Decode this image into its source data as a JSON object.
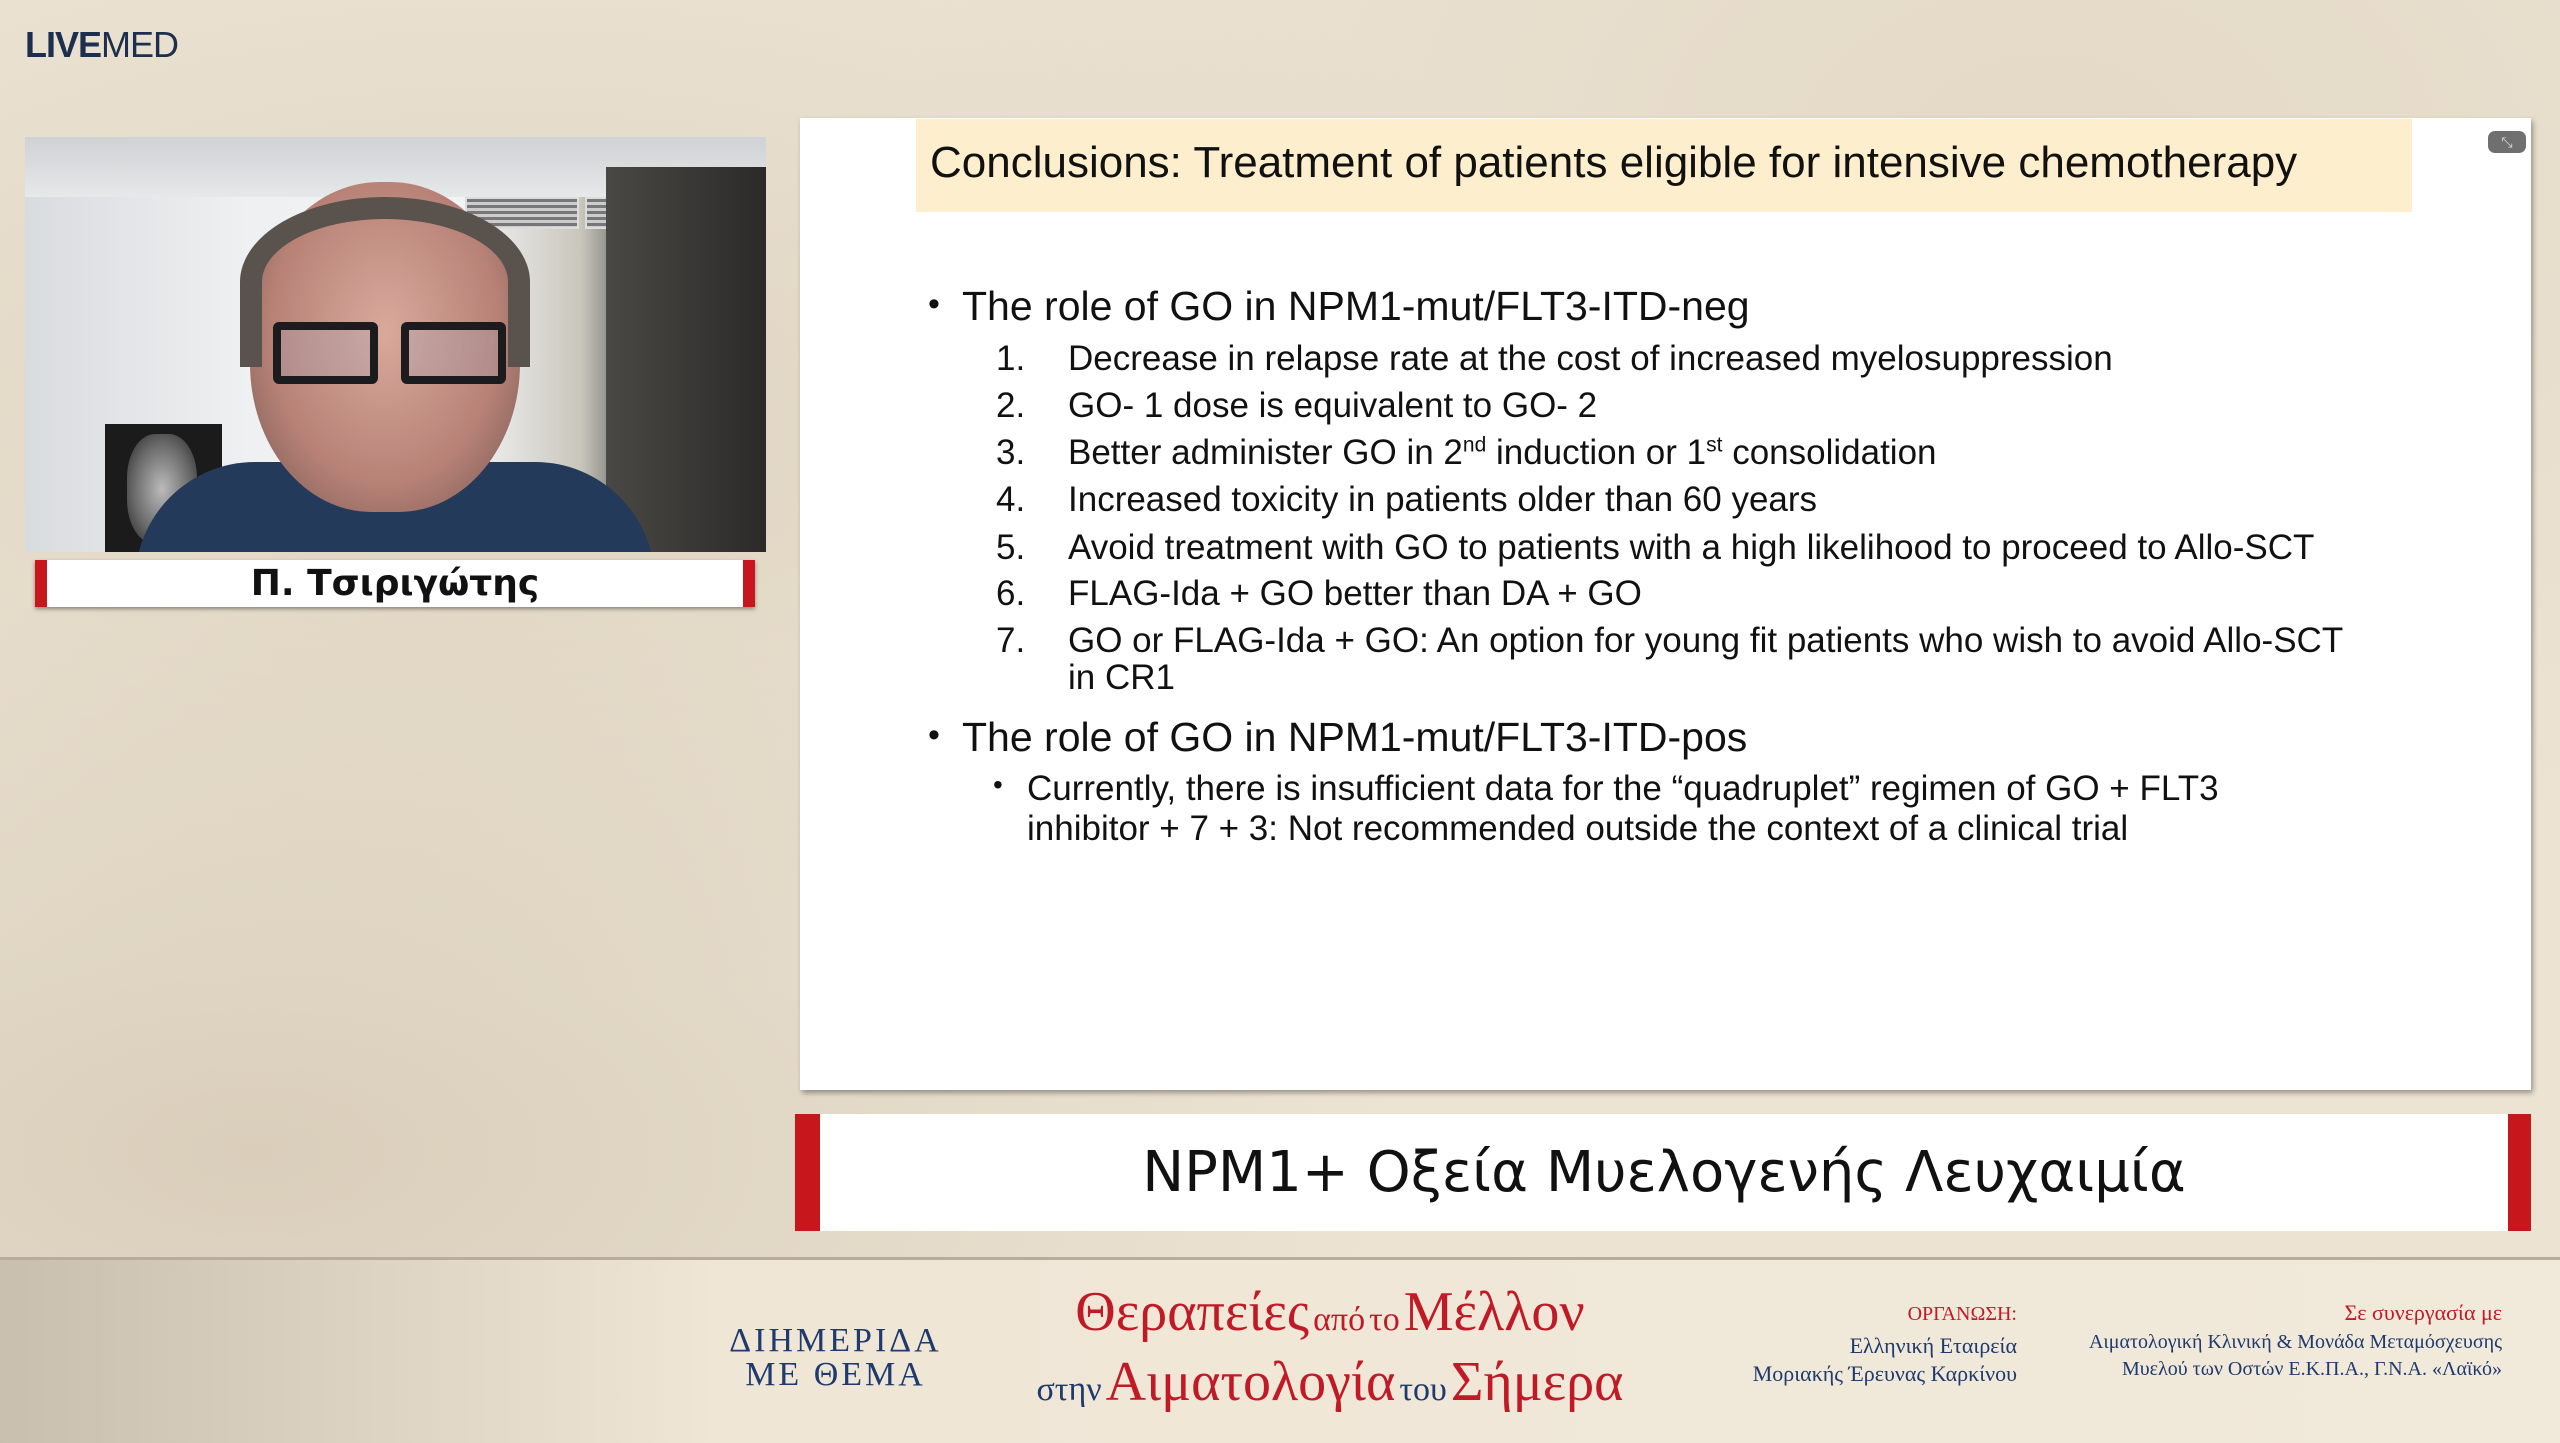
{
  "logo": {
    "bold": "LIVE",
    "light": "MED"
  },
  "speaker": {
    "name": "Π. Τσιριγώτης"
  },
  "slide": {
    "title": "Conclusions: Treatment of patients eligible for intensive chemotherapy",
    "collapse_icon": "collapse-arrows-icon",
    "sections": [
      {
        "heading": "The role of GO in NPM1-mut/FLT3-ITD-neg",
        "items": [
          {
            "num": "1.",
            "text": "Decrease in relapse rate at the cost of increased myelosuppression"
          },
          {
            "num": "2.",
            "text": "GO- 1 dose is equivalent to GO- 2"
          },
          {
            "num": "3.",
            "pre": "Better administer GO in 2",
            "sup1": "nd",
            "mid": " induction or 1",
            "sup2": "st",
            "post": " consolidation"
          },
          {
            "num": "4.",
            "text": "Increased toxicity in patients older than 60 years"
          },
          {
            "num": "5.",
            "text": "Avoid treatment with GO to patients with a high likelihood to proceed to Allo-SCT"
          },
          {
            "num": "6.",
            "text": "FLAG-Ida + GO better than DA + GO"
          },
          {
            "num": "7.",
            "text": "GO or FLAG-Ida + GO: An option for young fit patients who wish to avoid Allo-SCT",
            "text2": "in CR1"
          }
        ]
      },
      {
        "heading": "The role of GO in NPM1-mut/FLT3-ITD-pos",
        "items": [
          {
            "text": "Currently, there is insufficient data for the “quadruplet” regimen of GO + FLT3",
            "text2": "inhibitor + 7 + 3: Not recommended outside the context of a clinical trial"
          }
        ]
      }
    ]
  },
  "banner": {
    "title": "NPM1+ Οξεία Μυελογενής Λευχαιμία"
  },
  "footer": {
    "event_line1": "ΔΙΗΜΕΡΙΔΑ",
    "event_line2": "ΜΕ ΘΕΜΑ",
    "theme": {
      "w1": "Θεραπείες",
      "w2": "από",
      "w3": "το",
      "w4": "Μέλλον",
      "w5": "στην",
      "w6": "Αιματολογία",
      "w7": "του",
      "w8": "Σήμερα"
    },
    "organizer_label": "ΟΡΓΑΝΩΣΗ:",
    "organizer_line1": "Ελληνική Εταιρεία",
    "organizer_line2": "Μοριακής Έρευνας Καρκίνου",
    "partner_label": "Σε συνεργασία με",
    "partner_line1": "Αιματολογική Κλινική & Μονάδα Μεταμόσχευσης",
    "partner_line2": "Μυελού των Οστών Ε.Κ.Π.Α., Γ.Ν.Α. «Λαϊκό»"
  },
  "colors": {
    "accent_red": "#c8161d",
    "navy": "#1e3a6e",
    "title_bg": "#fdefcd"
  }
}
